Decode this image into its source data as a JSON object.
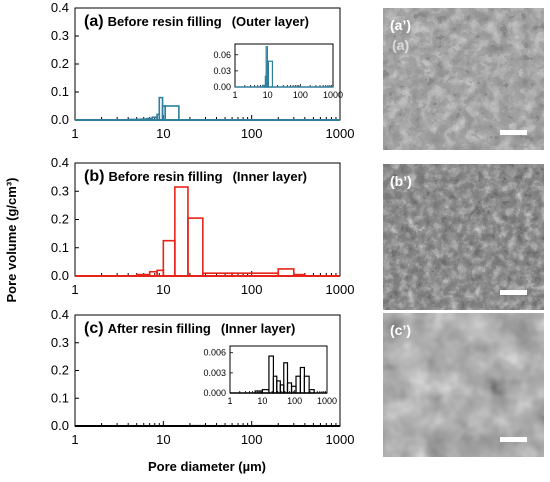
{
  "figure": {
    "ylabel": "Pore volume (g/cm³)",
    "xlabel": "Pore diameter (µm)",
    "x_ticks": [
      "1",
      "10",
      "100",
      "1000"
    ],
    "y_ticks": [
      "0.0",
      "0.1",
      "0.2",
      "0.3",
      "0.4"
    ]
  },
  "images": [
    {
      "label": "(a’)",
      "sublabel": "(a)",
      "texture": "porous-outer"
    },
    {
      "label": "(b’)",
      "sublabel": "",
      "texture": "porous-inner"
    },
    {
      "label": "(c’)",
      "sublabel": "",
      "texture": "filled-smooth"
    }
  ],
  "chart_data": [
    {
      "type": "bar",
      "panel_label": "(a)",
      "title": "Before resin filling",
      "subtitle": "(Outer layer)",
      "color": "#2e7f9e",
      "xscale": "log",
      "xlim": [
        1,
        1000
      ],
      "ylim": [
        0,
        0.4
      ],
      "bins": [
        {
          "x0": 4.0,
          "x1": 5.5,
          "value": 0.002
        },
        {
          "x0": 5.5,
          "x1": 6.5,
          "value": 0.003
        },
        {
          "x0": 6.5,
          "x1": 7.5,
          "value": 0.005
        },
        {
          "x0": 7.5,
          "x1": 8.5,
          "value": 0.01
        },
        {
          "x0": 8.5,
          "x1": 9.0,
          "value": 0.02
        },
        {
          "x0": 9.0,
          "x1": 9.8,
          "value": 0.08
        },
        {
          "x0": 9.8,
          "x1": 10.5,
          "value": 0.05
        },
        {
          "x0": 10.5,
          "x1": 15.0,
          "value": 0.05
        }
      ],
      "inset": {
        "xlim": [
          1,
          1000
        ],
        "ylim": [
          0,
          0.08
        ],
        "x_ticks": [
          "1",
          "10",
          "100",
          "1000"
        ],
        "y_ticks": [
          "0.00",
          "0.03",
          "0.06"
        ],
        "bins": [
          {
            "x0": 7.0,
            "x1": 8.5,
            "value": 0.003
          },
          {
            "x0": 8.5,
            "x1": 9.0,
            "value": 0.02
          },
          {
            "x0": 9.0,
            "x1": 9.8,
            "value": 0.075
          },
          {
            "x0": 9.8,
            "x1": 10.5,
            "value": 0.048
          },
          {
            "x0": 10.5,
            "x1": 14.0,
            "value": 0.048
          }
        ]
      }
    },
    {
      "type": "bar",
      "panel_label": "(b)",
      "title": "Before resin filling",
      "subtitle": "(Inner layer)",
      "color": "#e8231a",
      "xscale": "log",
      "xlim": [
        1,
        1000
      ],
      "ylim": [
        0,
        0.4
      ],
      "bins": [
        {
          "x0": 5.0,
          "x1": 7.0,
          "value": 0.005
        },
        {
          "x0": 7.0,
          "x1": 8.5,
          "value": 0.015
        },
        {
          "x0": 8.5,
          "x1": 10.0,
          "value": 0.02
        },
        {
          "x0": 10.0,
          "x1": 13.5,
          "value": 0.125
        },
        {
          "x0": 13.5,
          "x1": 19.0,
          "value": 0.315
        },
        {
          "x0": 19.0,
          "x1": 28.0,
          "value": 0.205
        },
        {
          "x0": 28.0,
          "x1": 60.0,
          "value": 0.01
        },
        {
          "x0": 60.0,
          "x1": 200.0,
          "value": 0.01
        },
        {
          "x0": 200.0,
          "x1": 300.0,
          "value": 0.025
        },
        {
          "x0": 300.0,
          "x1": 400.0,
          "value": 0.005
        }
      ]
    },
    {
      "type": "bar",
      "panel_label": "(c)",
      "title": "After resin filling",
      "subtitle": "(Inner layer)",
      "color": "#000000",
      "xscale": "log",
      "xlim": [
        1,
        1000
      ],
      "ylim": [
        0,
        0.4
      ],
      "bins": [
        {
          "x0": 6.0,
          "x1": 20.0,
          "value": 0.0003
        },
        {
          "x0": 20.0,
          "x1": 30.0,
          "value": 0.001
        },
        {
          "x0": 30.0,
          "x1": 45.0,
          "value": 0.0008
        },
        {
          "x0": 45.0,
          "x1": 100.0,
          "value": 0.0007
        },
        {
          "x0": 100.0,
          "x1": 200.0,
          "value": 0.0009
        },
        {
          "x0": 200.0,
          "x1": 400.0,
          "value": 0.0006
        }
      ],
      "inset": {
        "xlim": [
          1,
          1000
        ],
        "ylim": [
          0,
          0.007
        ],
        "x_ticks": [
          "1",
          "10",
          "100",
          "1000"
        ],
        "y_ticks": [
          "0.000",
          "0.003",
          "0.006"
        ],
        "bins": [
          {
            "x0": 6.0,
            "x1": 10.0,
            "value": 0.0003
          },
          {
            "x0": 10.0,
            "x1": 16.0,
            "value": 0.0005
          },
          {
            "x0": 16.0,
            "x1": 22.0,
            "value": 0.0055
          },
          {
            "x0": 22.0,
            "x1": 28.0,
            "value": 0.0025
          },
          {
            "x0": 28.0,
            "x1": 36.0,
            "value": 0.0018
          },
          {
            "x0": 36.0,
            "x1": 46.0,
            "value": 0.0012
          },
          {
            "x0": 46.0,
            "x1": 60.0,
            "value": 0.0045
          },
          {
            "x0": 60.0,
            "x1": 80.0,
            "value": 0.0015
          },
          {
            "x0": 80.0,
            "x1": 110.0,
            "value": 0.001
          },
          {
            "x0": 110.0,
            "x1": 150.0,
            "value": 0.0025
          },
          {
            "x0": 150.0,
            "x1": 200.0,
            "value": 0.0038
          },
          {
            "x0": 200.0,
            "x1": 280.0,
            "value": 0.0025
          },
          {
            "x0": 280.0,
            "x1": 400.0,
            "value": 0.0005
          }
        ]
      }
    }
  ]
}
